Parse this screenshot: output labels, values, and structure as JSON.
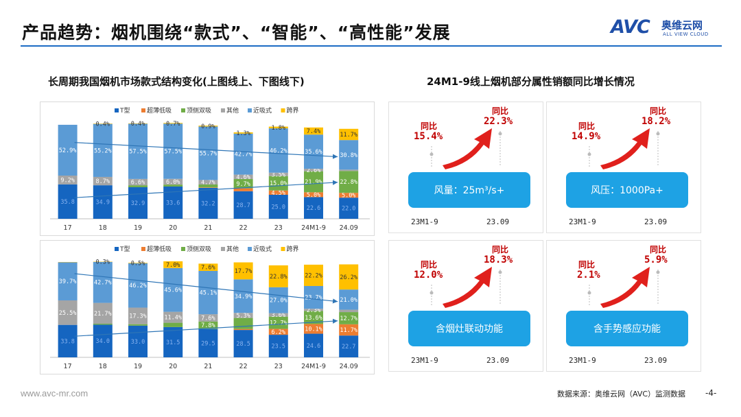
{
  "header": {
    "title": "产品趋势：烟机围绕“款式”、“智能”、“高性能”发展"
  },
  "logo": {
    "mark": "AVC",
    "cn": "奥维云网",
    "en": "ALL VIEW CLOUD"
  },
  "left_title": "长周期我国烟机市场款式结构变化(上图线上、下图线下)",
  "right_title": "24M1-9线上烟机部分属性销额同比增长情况",
  "legend": [
    "T型",
    "超薄低吸",
    "顶侧双吸",
    "其他",
    "近吸式",
    "跨界"
  ],
  "colors": {
    "t": "#1565c0",
    "thin": "#ed7d31",
    "side": "#70ad47",
    "other": "#a5a5a5",
    "near": "#5b9bd5",
    "cross": "#ffc000",
    "accent": "#1c6bc4",
    "red": "#c00000",
    "pill": "#1ea2e4"
  },
  "chart_data": [
    {
      "type": "bar",
      "stacked": true,
      "title": "线上",
      "categories": [
        "17",
        "18",
        "19",
        "20",
        "21",
        "22",
        "23",
        "24M1-9",
        "24.09"
      ],
      "series": [
        {
          "name": "T型",
          "values": [
            35.8,
            34.9,
            32.9,
            33.6,
            32.2,
            28.7,
            25.0,
            22.6,
            22.0
          ]
        },
        {
          "name": "超薄低吸",
          "values": [
            0,
            0,
            0,
            0,
            0.5,
            3.0,
            4.5,
            5.0,
            5.0
          ]
        },
        {
          "name": "顶侧双吸",
          "values": [
            0,
            0,
            2.0,
            2.0,
            3.0,
            9.7,
            15.0,
            21.9,
            22.8
          ]
        },
        {
          "name": "其他",
          "values": [
            9.2,
            8.7,
            6.6,
            6.0,
            4.7,
            4.6,
            3.5,
            2.6,
            1.4
          ]
        },
        {
          "name": "近吸式",
          "values": [
            52.9,
            55.2,
            57.5,
            57.5,
            55.7,
            42.7,
            46.2,
            35.6,
            30.8
          ]
        },
        {
          "name": "跨界",
          "values": [
            0,
            0.4,
            0.4,
            0.7,
            0.9,
            1.3,
            1.8,
            7.4,
            11.7
          ]
        }
      ],
      "data_labels": [
        [
          "35.8",
          "",
          "",
          "9.2%",
          "52.9%",
          ""
        ],
        [
          "34.9",
          "",
          "",
          "8.7%",
          "55.2%",
          "0.4%"
        ],
        [
          "32.9",
          "",
          "",
          "6.6%",
          "57.5%",
          "0.4%"
        ],
        [
          "33.6",
          "",
          "",
          "6.0%",
          "57.5%",
          "0.7%"
        ],
        [
          "32.2",
          "",
          "",
          "4.7%",
          "55.7%",
          "0.9%"
        ],
        [
          "28.7",
          "",
          "9.7%",
          "4.6%",
          "42.7%",
          "1.3%"
        ],
        [
          "25.0",
          "4.5%",
          "15.0%",
          "3.5%",
          "46.2%",
          "1.8%"
        ],
        [
          "22.6",
          "5.0%",
          "21.9%",
          "2.6%",
          "35.6%",
          "7.4%"
        ],
        [
          "22.0",
          "5.0%",
          "22.8%",
          "",
          "30.8%",
          "11.7%"
        ]
      ],
      "ylim": [
        0,
        100
      ]
    },
    {
      "type": "bar",
      "stacked": true,
      "title": "线下",
      "categories": [
        "17",
        "18",
        "19",
        "20",
        "21",
        "22",
        "23",
        "24M1-9",
        "24.09"
      ],
      "series": [
        {
          "name": "T型",
          "values": [
            33.8,
            34.0,
            33.0,
            31.5,
            29.5,
            28.5,
            23.5,
            24.6,
            22.7
          ]
        },
        {
          "name": "超薄低吸",
          "values": [
            0,
            0,
            0,
            0,
            0,
            1.0,
            6.2,
            10.1,
            11.7
          ]
        },
        {
          "name": "顶侧双吸",
          "values": [
            0,
            1.0,
            1.5,
            4.5,
            7.8,
            11.5,
            12.7,
            13.6,
            12.7
          ]
        },
        {
          "name": "其他",
          "values": [
            25.5,
            21.7,
            17.3,
            11.4,
            7.6,
            5.3,
            3.6,
            2.3,
            2.5
          ]
        },
        {
          "name": "近吸式",
          "values": [
            39.7,
            42.7,
            46.2,
            45.6,
            45.1,
            34.9,
            27.0,
            23.7,
            21.0
          ]
        },
        {
          "name": "跨界",
          "values": [
            0.3,
            0.3,
            0.5,
            7.0,
            7.6,
            17.7,
            22.8,
            22.2,
            26.2
          ]
        }
      ],
      "data_labels": [
        [
          "33.8",
          "",
          "",
          "25.5%",
          "39.7%",
          ""
        ],
        [
          "34.0",
          "",
          "",
          "21.7%",
          "42.7%",
          "0.3%"
        ],
        [
          "33.0",
          "",
          "",
          "17.3%",
          "46.2%",
          "0.5%"
        ],
        [
          "31.5",
          "",
          "",
          "11.4%",
          "45.6%",
          "7.0%"
        ],
        [
          "29.5",
          "",
          "7.8%",
          "7.6%",
          "45.1%",
          "7.6%"
        ],
        [
          "28.5",
          "",
          "",
          "5.3%",
          "34.9%",
          "17.7%"
        ],
        [
          "23.5",
          "6.2%",
          "12.7%",
          "3.6%",
          "27.0%",
          "22.8%"
        ],
        [
          "24.6",
          "10.1%",
          "13.6%",
          "2.3%",
          "23.7%",
          "22.2%"
        ],
        [
          "22.7",
          "11.7%",
          "12.7%",
          "",
          "21.0%",
          "26.2%"
        ]
      ],
      "ylim": [
        0,
        100
      ]
    }
  ],
  "cards": [
    {
      "lbl_a": "同比",
      "val_a": "15.4%",
      "lbl_b": "同比",
      "val_b": "22.3%",
      "pill": "风量：25m³/s+",
      "yr_a": "23M1-9",
      "yr_b": "23.09"
    },
    {
      "lbl_a": "同比",
      "val_a": "14.9%",
      "lbl_b": "同比",
      "val_b": "18.2%",
      "pill": "风压：1000Pa+",
      "yr_a": "23M1-9",
      "yr_b": "23.09"
    },
    {
      "lbl_a": "同比",
      "val_a": "12.0%",
      "lbl_b": "同比",
      "val_b": "18.3%",
      "pill": "含烟灶联动功能",
      "yr_a": "23M1-9",
      "yr_b": "23.09"
    },
    {
      "lbl_a": "同比",
      "val_a": "2.1%",
      "lbl_b": "同比",
      "val_b": "5.9%",
      "pill": "含手势感应功能",
      "yr_a": "23M1-9",
      "yr_b": "23.09"
    }
  ],
  "footer": {
    "url": "www.avc-mr.com",
    "source": "数据来源：奥维云网（AVC）监测数据",
    "page": "-4-"
  }
}
